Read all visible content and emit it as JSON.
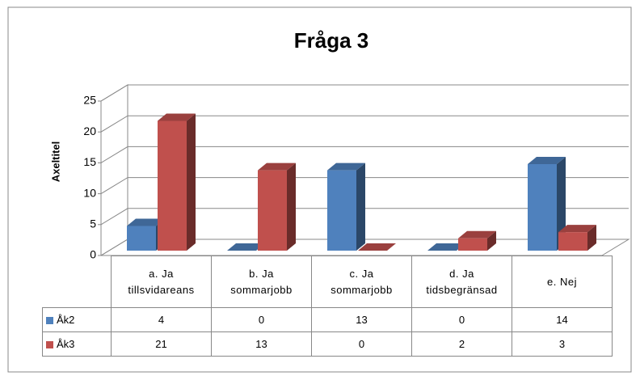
{
  "chart_data": {
    "type": "bar3d",
    "title": "Fråga 3",
    "y_label": "Axeltitel",
    "categories": [
      "a. Ja tillsvidareans",
      "b. Ja sommarjobb",
      "c. Ja sommarjobb",
      "d. Ja tidsbegränsad",
      "e. Nej"
    ],
    "series": [
      {
        "name": "Åk2",
        "color": "#4f81bd",
        "values": [
          4,
          0,
          13,
          0,
          14
        ]
      },
      {
        "name": "Åk3",
        "color": "#c0504d",
        "values": [
          21,
          13,
          0,
          2,
          3
        ]
      }
    ],
    "ylim": [
      0,
      25
    ],
    "yticks": [
      0,
      5,
      10,
      15,
      20,
      25
    ],
    "grid": true,
    "data_table": true
  }
}
